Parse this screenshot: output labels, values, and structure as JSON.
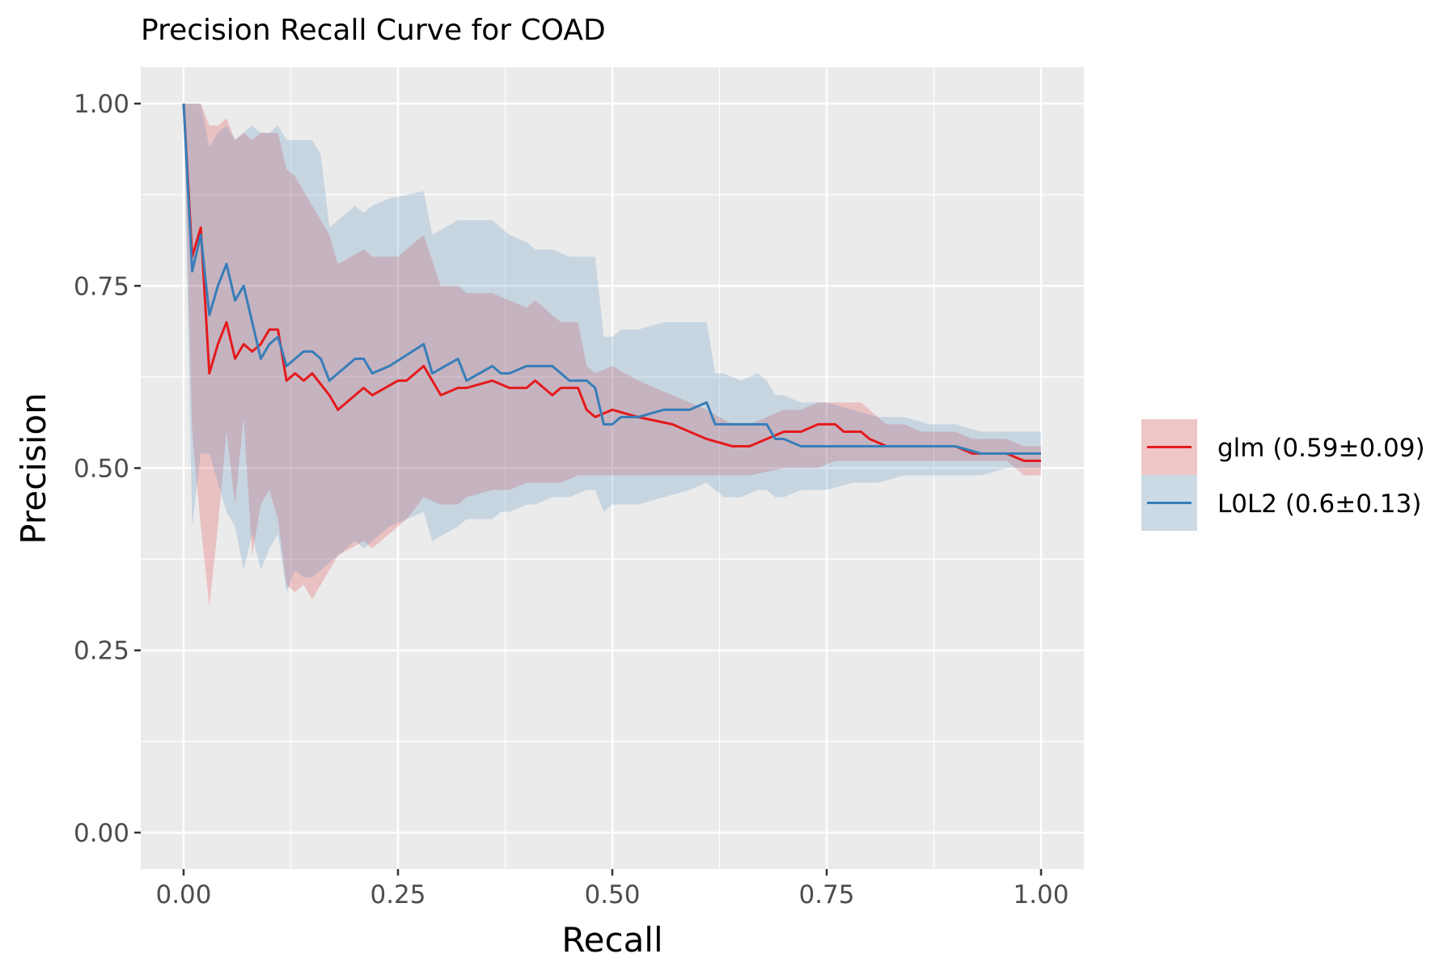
{
  "chart_data": {
    "type": "line",
    "title": "Precision Recall Curve for COAD",
    "xlabel": "Recall",
    "ylabel": "Precision",
    "xlim": [
      -0.05,
      1.05
    ],
    "ylim": [
      -0.05,
      1.05
    ],
    "xticks": [
      0.0,
      0.25,
      0.5,
      0.75,
      1.0
    ],
    "xtick_labels": [
      "0.00",
      "0.25",
      "0.50",
      "0.75",
      "1.00"
    ],
    "yticks": [
      0.0,
      0.25,
      0.5,
      0.75,
      1.0
    ],
    "ytick_labels": [
      "0.00",
      "0.25",
      "0.50",
      "0.75",
      "1.00"
    ],
    "grid": true,
    "legend_position": "right",
    "series": [
      {
        "name": "glm (0.59±0.09)",
        "color": "#e41a1c",
        "fill": "#f4c1c2",
        "x": [
          0.0,
          0.01,
          0.02,
          0.03,
          0.04,
          0.05,
          0.06,
          0.07,
          0.08,
          0.09,
          0.1,
          0.11,
          0.12,
          0.13,
          0.14,
          0.15,
          0.17,
          0.18,
          0.21,
          0.22,
          0.25,
          0.26,
          0.28,
          0.3,
          0.32,
          0.33,
          0.36,
          0.38,
          0.4,
          0.41,
          0.43,
          0.44,
          0.46,
          0.47,
          0.48,
          0.5,
          0.53,
          0.57,
          0.59,
          0.61,
          0.64,
          0.66,
          0.7,
          0.72,
          0.74,
          0.76,
          0.77,
          0.79,
          0.8,
          0.82,
          0.84,
          0.86,
          0.88,
          0.9,
          0.92,
          0.94,
          0.96,
          0.98,
          0.99,
          1.0
        ],
        "y": [
          1.0,
          0.79,
          0.83,
          0.63,
          0.67,
          0.7,
          0.65,
          0.67,
          0.66,
          0.67,
          0.69,
          0.69,
          0.62,
          0.63,
          0.62,
          0.63,
          0.6,
          0.58,
          0.61,
          0.6,
          0.62,
          0.62,
          0.64,
          0.6,
          0.61,
          0.61,
          0.62,
          0.61,
          0.61,
          0.62,
          0.6,
          0.61,
          0.61,
          0.58,
          0.57,
          0.58,
          0.57,
          0.56,
          0.55,
          0.54,
          0.53,
          0.53,
          0.55,
          0.55,
          0.56,
          0.56,
          0.55,
          0.55,
          0.54,
          0.53,
          0.53,
          0.53,
          0.53,
          0.53,
          0.52,
          0.52,
          0.52,
          0.51,
          0.51,
          0.51
        ],
        "lower": [
          1.0,
          0.55,
          0.42,
          0.31,
          0.42,
          0.55,
          0.45,
          0.57,
          0.38,
          0.45,
          0.47,
          0.43,
          0.34,
          0.33,
          0.34,
          0.32,
          0.36,
          0.38,
          0.4,
          0.39,
          0.42,
          0.43,
          0.46,
          0.45,
          0.45,
          0.46,
          0.47,
          0.47,
          0.48,
          0.48,
          0.48,
          0.48,
          0.49,
          0.49,
          0.49,
          0.49,
          0.49,
          0.49,
          0.49,
          0.49,
          0.49,
          0.49,
          0.5,
          0.5,
          0.5,
          0.51,
          0.51,
          0.51,
          0.51,
          0.51,
          0.51,
          0.51,
          0.51,
          0.51,
          0.51,
          0.51,
          0.51,
          0.49,
          0.49,
          0.49
        ],
        "upper": [
          1.0,
          1.0,
          1.0,
          0.97,
          0.97,
          0.98,
          0.95,
          0.96,
          0.95,
          0.96,
          0.96,
          0.96,
          0.91,
          0.9,
          0.88,
          0.86,
          0.82,
          0.78,
          0.8,
          0.79,
          0.79,
          0.8,
          0.82,
          0.75,
          0.75,
          0.74,
          0.74,
          0.73,
          0.72,
          0.73,
          0.71,
          0.7,
          0.7,
          0.64,
          0.63,
          0.64,
          0.62,
          0.6,
          0.59,
          0.58,
          0.56,
          0.56,
          0.58,
          0.58,
          0.59,
          0.59,
          0.59,
          0.59,
          0.58,
          0.56,
          0.56,
          0.55,
          0.55,
          0.55,
          0.54,
          0.54,
          0.54,
          0.53,
          0.53,
          0.53
        ]
      },
      {
        "name": "L0L2 (0.6±0.13)",
        "color": "#377eb8",
        "fill": "#c6d6e5",
        "x": [
          0.0,
          0.01,
          0.02,
          0.03,
          0.04,
          0.05,
          0.06,
          0.07,
          0.08,
          0.09,
          0.1,
          0.11,
          0.12,
          0.13,
          0.14,
          0.15,
          0.16,
          0.17,
          0.2,
          0.21,
          0.22,
          0.24,
          0.28,
          0.29,
          0.32,
          0.33,
          0.36,
          0.37,
          0.38,
          0.4,
          0.41,
          0.43,
          0.45,
          0.47,
          0.48,
          0.49,
          0.5,
          0.51,
          0.53,
          0.56,
          0.59,
          0.61,
          0.62,
          0.63,
          0.65,
          0.67,
          0.68,
          0.69,
          0.7,
          0.72,
          0.75,
          0.78,
          0.81,
          0.84,
          0.87,
          0.9,
          0.93,
          0.96,
          0.98,
          1.0
        ],
        "y": [
          1.0,
          0.77,
          0.82,
          0.71,
          0.75,
          0.78,
          0.73,
          0.75,
          0.7,
          0.65,
          0.67,
          0.68,
          0.64,
          0.65,
          0.66,
          0.66,
          0.65,
          0.62,
          0.65,
          0.65,
          0.63,
          0.64,
          0.67,
          0.63,
          0.65,
          0.62,
          0.64,
          0.63,
          0.63,
          0.64,
          0.64,
          0.64,
          0.62,
          0.62,
          0.61,
          0.56,
          0.56,
          0.57,
          0.57,
          0.58,
          0.58,
          0.59,
          0.56,
          0.56,
          0.56,
          0.56,
          0.56,
          0.54,
          0.54,
          0.53,
          0.53,
          0.53,
          0.53,
          0.53,
          0.53,
          0.53,
          0.52,
          0.52,
          0.52,
          0.52
        ],
        "lower": [
          1.0,
          0.42,
          0.52,
          0.52,
          0.48,
          0.44,
          0.42,
          0.36,
          0.41,
          0.36,
          0.39,
          0.41,
          0.33,
          0.36,
          0.35,
          0.35,
          0.36,
          0.37,
          0.4,
          0.39,
          0.4,
          0.42,
          0.44,
          0.4,
          0.42,
          0.43,
          0.43,
          0.44,
          0.44,
          0.45,
          0.45,
          0.46,
          0.46,
          0.47,
          0.47,
          0.44,
          0.45,
          0.45,
          0.45,
          0.46,
          0.47,
          0.48,
          0.47,
          0.46,
          0.46,
          0.47,
          0.47,
          0.46,
          0.46,
          0.47,
          0.47,
          0.48,
          0.48,
          0.49,
          0.49,
          0.49,
          0.49,
          0.5,
          0.5,
          0.5
        ],
        "upper": [
          1.0,
          1.0,
          1.0,
          0.94,
          0.96,
          0.97,
          0.95,
          0.96,
          0.97,
          0.96,
          0.96,
          0.97,
          0.95,
          0.95,
          0.95,
          0.95,
          0.93,
          0.83,
          0.86,
          0.85,
          0.86,
          0.87,
          0.88,
          0.82,
          0.84,
          0.84,
          0.84,
          0.83,
          0.82,
          0.81,
          0.8,
          0.8,
          0.79,
          0.79,
          0.79,
          0.68,
          0.68,
          0.69,
          0.69,
          0.7,
          0.7,
          0.7,
          0.63,
          0.63,
          0.62,
          0.63,
          0.62,
          0.6,
          0.6,
          0.59,
          0.59,
          0.58,
          0.57,
          0.57,
          0.56,
          0.56,
          0.55,
          0.55,
          0.55,
          0.55
        ]
      }
    ]
  }
}
